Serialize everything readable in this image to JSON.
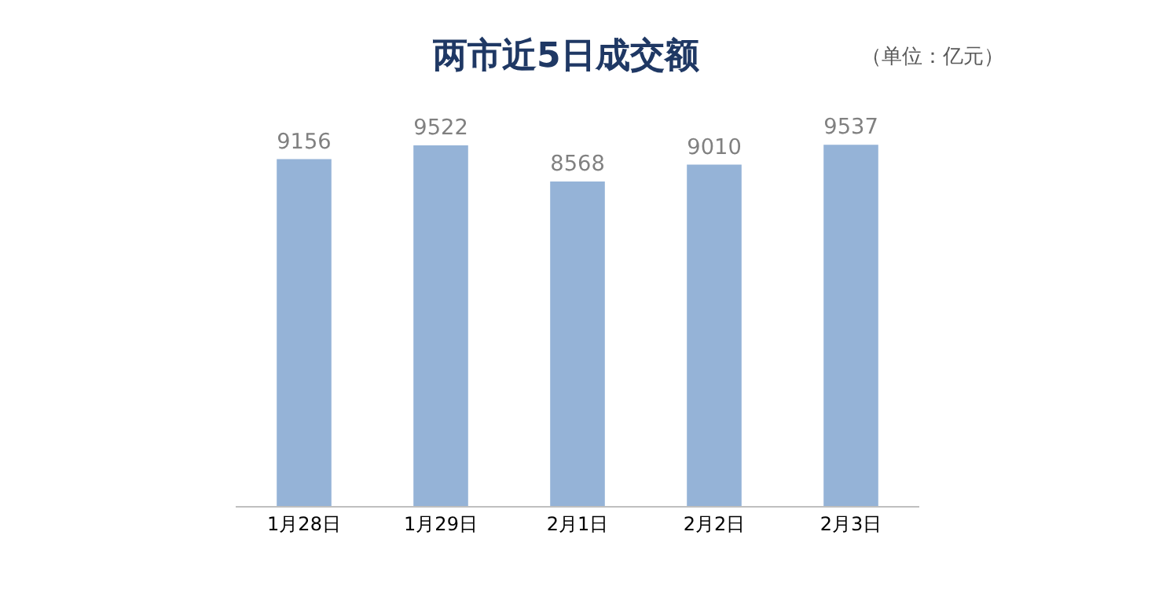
{
  "chart_data": {
    "type": "bar",
    "title": "两市近5日成交额",
    "subtitle": "（单位：亿元）",
    "categories": [
      "1月28日",
      "1月29日",
      "2月1日",
      "2月2日",
      "2月3日"
    ],
    "values": [
      9156,
      9522,
      8568,
      9010,
      9537
    ],
    "color": "#95b3d7",
    "data_labels": true,
    "grid": false,
    "legend": false,
    "tick_labels": "x"
  }
}
